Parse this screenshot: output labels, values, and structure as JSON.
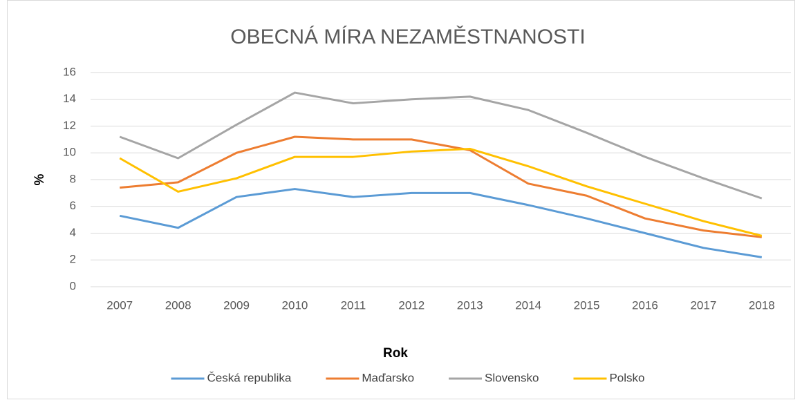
{
  "chart_data": {
    "type": "line",
    "title": "OBECNÁ MÍRA NEZAMĚSTNANOSTI",
    "x_label": "Rok",
    "y_label": "%",
    "categories": [
      "2007",
      "2008",
      "2009",
      "2010",
      "2011",
      "2012",
      "2013",
      "2014",
      "2015",
      "2016",
      "2017",
      "2018"
    ],
    "series": [
      {
        "name": "Česká republika",
        "color": "#5b9bd5",
        "values": [
          5.3,
          4.4,
          6.7,
          7.3,
          6.7,
          7.0,
          7.0,
          6.1,
          5.1,
          4.0,
          2.9,
          2.2
        ]
      },
      {
        "name": "Maďarsko",
        "color": "#ed7d31",
        "values": [
          7.4,
          7.8,
          10.0,
          11.2,
          11.0,
          11.0,
          10.2,
          7.7,
          6.8,
          5.1,
          4.2,
          3.7
        ]
      },
      {
        "name": "Slovensko",
        "color": "#a5a5a5",
        "values": [
          11.2,
          9.6,
          12.1,
          14.5,
          13.7,
          14.0,
          14.2,
          13.2,
          11.5,
          9.7,
          8.1,
          6.6
        ]
      },
      {
        "name": "Polsko",
        "color": "#ffc000",
        "values": [
          9.6,
          7.1,
          8.1,
          9.7,
          9.7,
          10.1,
          10.3,
          9.0,
          7.5,
          6.2,
          4.9,
          3.8
        ]
      }
    ],
    "ylim": [
      0,
      16
    ],
    "yticks": [
      0,
      2,
      4,
      6,
      8,
      10,
      12,
      14,
      16
    ],
    "grid": true,
    "legend": "bottom"
  }
}
